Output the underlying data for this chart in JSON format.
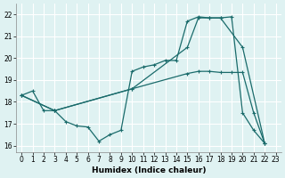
{
  "xlabel": "Humidex (Indice chaleur)",
  "bg_color": "#dff2f2",
  "line_color": "#1a6b6b",
  "grid_color": "#ffffff",
  "xlim": [
    -0.5,
    23.5
  ],
  "ylim": [
    15.7,
    22.5
  ],
  "yticks": [
    16,
    17,
    18,
    19,
    20,
    21,
    22
  ],
  "xticks": [
    0,
    1,
    2,
    3,
    4,
    5,
    6,
    7,
    8,
    9,
    10,
    11,
    12,
    13,
    14,
    15,
    16,
    17,
    18,
    19,
    20,
    21,
    22,
    23
  ],
  "series": [
    {
      "x": [
        0,
        1,
        2,
        3,
        4,
        5,
        6,
        7,
        8,
        9,
        10,
        11,
        12,
        13,
        14,
        15,
        16,
        17,
        18,
        19,
        20,
        21,
        22
      ],
      "y": [
        18.3,
        18.5,
        17.6,
        17.6,
        17.1,
        16.9,
        16.85,
        16.2,
        16.5,
        16.7,
        19.4,
        19.6,
        19.7,
        19.9,
        19.9,
        21.7,
        21.9,
        21.85,
        21.85,
        21.9,
        17.5,
        16.7,
        16.1
      ]
    },
    {
      "x": [
        0,
        3,
        10,
        15,
        16,
        17,
        18,
        20,
        22
      ],
      "y": [
        18.3,
        17.6,
        18.6,
        20.5,
        21.85,
        21.85,
        21.85,
        20.5,
        16.1
      ]
    },
    {
      "x": [
        0,
        3,
        10,
        15,
        16,
        17,
        18,
        19,
        20,
        21,
        22
      ],
      "y": [
        18.3,
        17.6,
        18.6,
        19.3,
        19.4,
        19.4,
        19.35,
        19.35,
        19.35,
        17.5,
        16.1
      ]
    }
  ]
}
